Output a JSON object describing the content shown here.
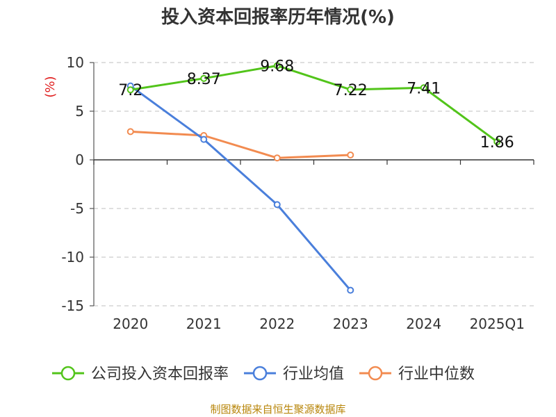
{
  "chart_data": {
    "type": "line",
    "title": "投入资本回报率历年情况(%)",
    "ylabel": "(%)",
    "xlabel": "",
    "categories": [
      "2020",
      "2021",
      "2022",
      "2023",
      "2024",
      "2025Q1"
    ],
    "ylim": [
      -15,
      10
    ],
    "yticks": [
      10,
      5,
      0,
      -5,
      -10,
      -15
    ],
    "grid": true,
    "legend_position": "bottom",
    "series": [
      {
        "name": "公司投入资本回报率",
        "color": "#52c41a",
        "values": [
          7.2,
          8.37,
          9.68,
          7.22,
          7.41,
          1.86
        ],
        "labels": [
          "7.2",
          "8.37",
          "9.68",
          "7.22",
          "7.41",
          "1.86"
        ]
      },
      {
        "name": "行业均值",
        "color": "#4a7fdb",
        "values": [
          7.6,
          2.1,
          -4.6,
          -13.4,
          null,
          null
        ]
      },
      {
        "name": "行业中位数",
        "color": "#f28b50",
        "values": [
          2.9,
          2.5,
          0.2,
          0.5,
          null,
          null
        ]
      }
    ]
  },
  "source": "制图数据来自恒生聚源数据库"
}
